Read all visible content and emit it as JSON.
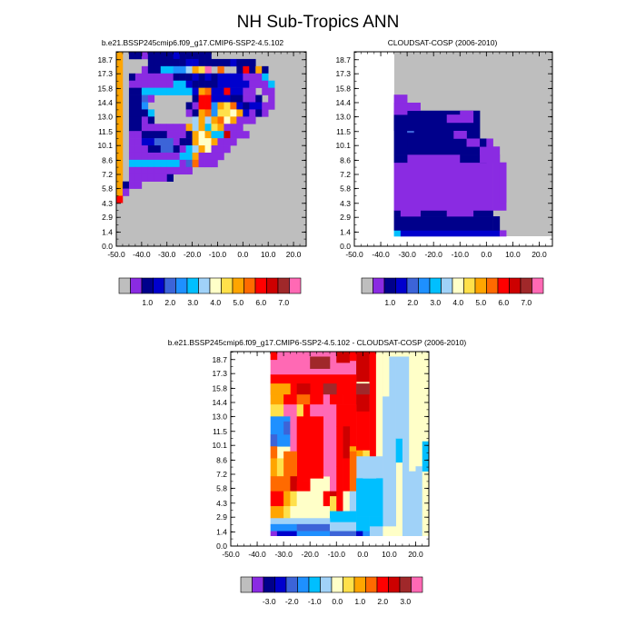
{
  "page": {
    "title": "NH Sub-Tropics ANN"
  },
  "colors": {
    "missing": "#bebebe",
    "palette": [
      "#bebebe",
      "#8a2be2",
      "#00008b",
      "#0000cd",
      "#3c64d8",
      "#1e90ff",
      "#00bfff",
      "#a0d2f8",
      "#ffffc8",
      "#ffe04a",
      "#ffa500",
      "#ff6a00",
      "#ff0000",
      "#cd0000",
      "#a0282a",
      "#ff69b4"
    ],
    "frame": "#000000"
  },
  "chart_data": [
    {
      "id": "model",
      "type": "heatmap",
      "title": "b.e21.BSSP245cmip6.f09_g17.CMIP6-SSP2-4.5.102",
      "xlabel": "",
      "ylabel": "",
      "xlim": [
        -50,
        25
      ],
      "ylim": [
        0,
        19.5
      ],
      "x_ticks": [
        "-50.0",
        "-40.0",
        "-30.0",
        "-20.0",
        "-10.0",
        "0.0",
        "10.0",
        "20.0"
      ],
      "y_ticks": [
        "0.0",
        "1.4",
        "2.9",
        "4.3",
        "5.8",
        "7.2",
        "8.6",
        "10.1",
        "11.5",
        "13.0",
        "14.4",
        "15.8",
        "17.3",
        "18.7"
      ],
      "x_cells": [
        -50,
        -47.5,
        -45,
        -42.5,
        -40,
        -37.5,
        -35,
        -32.5,
        -30,
        -27.5,
        -25,
        -22.5,
        -20,
        -17.5,
        -15,
        -12.5,
        -10,
        -7.5,
        -5,
        -2.5,
        0,
        2.5,
        5,
        7.5,
        10,
        12.5,
        15,
        17.5,
        20,
        22.5,
        25
      ],
      "y_cells": [
        0,
        0.72,
        1.44,
        2.16,
        2.88,
        3.6,
        4.32,
        5.04,
        5.76,
        6.48,
        7.2,
        7.92,
        8.64,
        9.36,
        10.08,
        10.8,
        11.52,
        12.24,
        12.96,
        13.68,
        14.4,
        15.12,
        15.84,
        16.56,
        17.28,
        18.0,
        18.72,
        19.5
      ],
      "missing": ".",
      "legend": {
        "position": "bottom",
        "labels": [
          "1.0",
          "2.0",
          "3.0",
          "4.0",
          "5.0",
          "6.0",
          "7.0"
        ]
      },
      "rows": [
        "AO2212222322222.............",
        "AOMOO22222233222223222......",
        "AOLO12266557A9FOBOO2C2A2....",
        "AO2111111222323233331116....",
        "AO11111116632222333331116...",
        "AO22666666663AB33C3311.11...",
        "AO2241......2CC33322112.1...",
        "AO225......21CC5A9B323311...",
        "AO2226.....12AB5998A3121....",
        "AO2212......7A7AB8A111......",
        "AO221111111A7A69A111........",
        "AO1122221112A8A66D111.......",
        "AO1133444122A88A111.........",
        "AO11122442167A8111..........",
        "AO1111111166A1111...........",
        "AO6666666614B111............",
        "AO1111111111................",
        "AO1111112...................",
        "A211........................",
        "A1..........................",
        "C...........................",
        "0...........................",
        "............................",
        "............................",
        "............................",
        "............................",
        "............................"
      ]
    },
    {
      "id": "obs",
      "type": "heatmap",
      "title": "CLOUDSAT-COSP (2006-2010)",
      "xlabel": "",
      "ylabel": "",
      "xlim": [
        -50,
        25
      ],
      "ylim": [
        0,
        19.5
      ],
      "x_ticks": [
        "-50.0",
        "-40.0",
        "-30.0",
        "-20.0",
        "-10.0",
        "0.0",
        "10.0",
        "20.0"
      ],
      "y_ticks": [
        "0.0",
        "1.4",
        "2.9",
        "4.3",
        "5.8",
        "7.2",
        "8.6",
        "10.1",
        "11.5",
        "13.0",
        "14.4",
        "15.8",
        "17.3",
        "18.7"
      ],
      "legend": {
        "position": "bottom",
        "labels": [
          "1.0",
          "2.0",
          "3.0",
          "4.0",
          "5.0",
          "6.0",
          "7.0"
        ]
      },
      "rows": [
        "WWWWWWWWWWWWWWWWWWWWWWWWWWWWWW",
        "WWWWWWWWW2222222222222222WWWWW",
        "WWWWWWWWW22211111111111112WWWW",
        "WWWWWWWWW22111111111111122WWWW",
        "WWWWWWWWW2111111111111222WWWWW",
        "WWWWWWWWW211111111111122WWWWWW",
        "WWWWWWWWW211111111111122WWWWWW",
        "WWWWWWWWW211111111111122WWWWWW",
        "WWWWWWWWW22111111111111122WWWW",
        "WWWWWWWWW22211111111111112WWWW",
        "WWWWWWWWW2222222222222222WWWWW",
        "WWWWWWWWW222222222222222WWWWWW",
        "WWWWWWWWW222222222222WWWWWWWWW",
        "WWWWWWWWW22222222222WWWWWWWWWW",
        "WWWWWWWWW2222222222WWWWWWWWWWW",
        "WWWWWWWWW222222222WWWWWWWWWWWW",
        "WWWWWWWWW22222222WWWWWWWWWWWWW",
        "WWWWWWWWW2222222WWWWWWWWWWWWWW",
        "WWWWWWWWWW22222WWWWWWWWWWWWWWW",
        "WWWWWWWWWWWWWWWWWWWWWWWWWWWWWW"
      ],
      "row_values": [
        "...........................",
        "...........................",
        "...........................",
        "...........................",
        "...........................",
        "...........................",
        "...........................",
        "...........................",
        "...........................",
        "...........................",
        "..........................."
      ],
      "blocks": [
        {
          "x0": -35.0,
          "x1": 25,
          "y0": 1.0,
          "y1": 19.5,
          "c": 0
        },
        {
          "x0": -50.0,
          "x1": -35.0,
          "y0": 0,
          "y1": 19.5,
          "c": -1
        },
        {
          "x0": -35.0,
          "x1": 25,
          "y0": 0,
          "y1": 1.0,
          "c": -1
        },
        {
          "x0": -35.0,
          "x1": -32.5,
          "y0": 1.0,
          "y1": 1.6,
          "c": 6
        },
        {
          "x0": -32.5,
          "x1": 5.0,
          "y0": 1.0,
          "y1": 1.6,
          "c": 3
        },
        {
          "x0": 5.0,
          "x1": 7.5,
          "y0": 1.0,
          "y1": 1.6,
          "c": 1
        },
        {
          "x0": -35.0,
          "x1": 2.5,
          "y0": 1.6,
          "y1": 3.0,
          "c": 2
        },
        {
          "x0": 2.5,
          "x1": 5.0,
          "y0": 1.6,
          "y1": 3.0,
          "c": 2
        },
        {
          "x0": -35.0,
          "x1": 2.5,
          "y0": 3.0,
          "y1": 3.6,
          "c": 2
        },
        {
          "x0": -35.0,
          "x1": 2.5,
          "y0": 3.6,
          "y1": 8.4,
          "c": 1
        },
        {
          "x0": 2.5,
          "x1": 7.5,
          "y0": 3.6,
          "y1": 8.4,
          "c": 1
        },
        {
          "x0": -32.5,
          "x1": -25.0,
          "y0": 3.0,
          "y1": 3.6,
          "c": 1
        },
        {
          "x0": -15.0,
          "x1": -5.0,
          "y0": 3.0,
          "y1": 3.6,
          "c": 1
        },
        {
          "x0": -30.0,
          "x1": -10.0,
          "y0": 8.4,
          "y1": 9.2,
          "c": 1
        },
        {
          "x0": -35.0,
          "x1": -30.0,
          "y0": 8.4,
          "y1": 9.2,
          "c": 2
        },
        {
          "x0": -10.0,
          "x1": 0.0,
          "y0": 8.4,
          "y1": 9.2,
          "c": 2
        },
        {
          "x0": 0.0,
          "x1": 5.0,
          "y0": 8.4,
          "y1": 9.2,
          "c": 1
        },
        {
          "x0": -35.0,
          "x1": -2.5,
          "y0": 9.2,
          "y1": 13.6,
          "c": 2
        },
        {
          "x0": -2.5,
          "x1": 0.0,
          "y0": 9.2,
          "y1": 10.0,
          "c": 2
        },
        {
          "x0": -2.5,
          "x1": 2.5,
          "y0": 9.2,
          "y1": 10.0,
          "c": 1
        },
        {
          "x0": -7.5,
          "x1": -2.5,
          "y0": 10.0,
          "y1": 10.8,
          "c": 1
        },
        {
          "x0": -12.5,
          "x1": -7.5,
          "y0": 10.8,
          "y1": 11.6,
          "c": 1
        },
        {
          "x0": -30.0,
          "x1": -12.5,
          "y0": 10.0,
          "y1": 11.6,
          "c": 2
        },
        {
          "x0": -30.0,
          "x1": -27.5,
          "y0": 11.4,
          "y1": 12.2,
          "c": 4
        },
        {
          "x0": -35.0,
          "x1": -25.0,
          "y0": 13.6,
          "y1": 14.4,
          "c": 1
        },
        {
          "x0": -12.5,
          "x1": -7.5,
          "y0": 11.6,
          "y1": 12.4,
          "c": 1
        },
        {
          "x0": -2.5,
          "x1": 5.0,
          "y0": 8.4,
          "y1": 10.0,
          "c": 1
        },
        {
          "x0": -35.0,
          "x1": -5.0,
          "y0": 11.6,
          "y1": 12.4,
          "c": 2
        },
        {
          "x0": -35.0,
          "x1": -22.5,
          "y0": 12.4,
          "y1": 13.2,
          "c": 2
        },
        {
          "x0": -35.0,
          "x1": -30.0,
          "y0": 13.2,
          "y1": 14.4,
          "c": 1
        },
        {
          "x0": -22.5,
          "x1": -15.0,
          "y0": 12.4,
          "y1": 13.2,
          "c": 2
        },
        {
          "x0": -35.0,
          "x1": -30.0,
          "y0": 14.4,
          "y1": 15.2,
          "c": 1
        },
        {
          "x0": -15.0,
          "x1": -10.0,
          "y0": 12.4,
          "y1": 13.2,
          "c": 1
        },
        {
          "x0": -10.0,
          "x1": -5.0,
          "y0": 12.4,
          "y1": 13.6,
          "c": 1
        },
        {
          "x0": -2.5,
          "x1": 0.0,
          "y0": 10.0,
          "y1": 10.8,
          "c": 2
        },
        {
          "x0": 0.0,
          "x1": 2.5,
          "y0": 10.0,
          "y1": 10.8,
          "c": 1
        },
        {
          "x0": 5.0,
          "x1": 7.5,
          "y0": 4.4,
          "y1": 8.4,
          "c": 1
        }
      ]
    },
    {
      "id": "diff",
      "type": "heatmap",
      "title": "b.e21.BSSP245cmip6.f09_g17.CMIP6-SSP2-4.5.102 - CLOUDSAT-COSP (2006-2010)",
      "xlabel": "",
      "ylabel": "",
      "xlim": [
        -50,
        25
      ],
      "ylim": [
        0,
        19.5
      ],
      "x_ticks": [
        "-50.0",
        "-40.0",
        "-30.0",
        "-20.0",
        "-10.0",
        "0.0",
        "10.0",
        "20.0"
      ],
      "y_ticks": [
        "0.0",
        "1.4",
        "2.9",
        "4.3",
        "5.8",
        "7.2",
        "8.6",
        "10.1",
        "11.5",
        "13.0",
        "14.4",
        "15.8",
        "17.3",
        "18.7"
      ],
      "legend": {
        "position": "bottom",
        "labels": [
          "-3.0",
          "-2.0",
          "-1.0",
          "0.0",
          "1.0",
          "2.0",
          "3.0"
        ]
      }
    }
  ]
}
